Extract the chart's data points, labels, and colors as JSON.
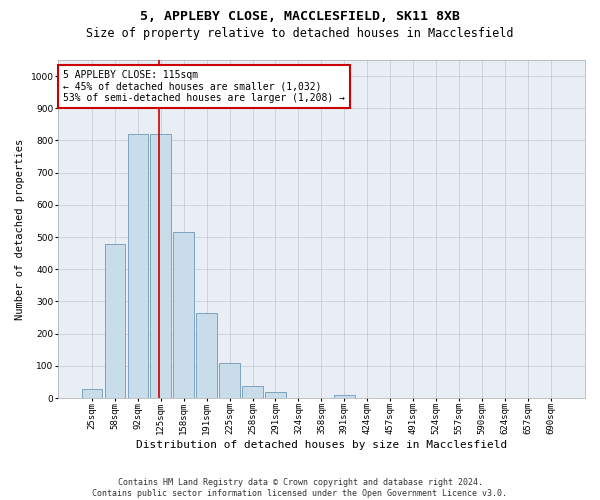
{
  "title1": "5, APPLEBY CLOSE, MACCLESFIELD, SK11 8XB",
  "title2": "Size of property relative to detached houses in Macclesfield",
  "xlabel": "Distribution of detached houses by size in Macclesfield",
  "ylabel": "Number of detached properties",
  "bar_labels": [
    "25sqm",
    "58sqm",
    "92sqm",
    "125sqm",
    "158sqm",
    "191sqm",
    "225sqm",
    "258sqm",
    "291sqm",
    "324sqm",
    "358sqm",
    "391sqm",
    "424sqm",
    "457sqm",
    "491sqm",
    "524sqm",
    "557sqm",
    "590sqm",
    "624sqm",
    "657sqm",
    "690sqm"
  ],
  "bar_values": [
    28,
    480,
    820,
    820,
    515,
    265,
    110,
    38,
    20,
    0,
    0,
    10,
    0,
    0,
    0,
    0,
    0,
    0,
    0,
    0,
    0
  ],
  "bar_color": "#c8dcea",
  "bar_edge_color": "#5a8ab0",
  "vline_color": "#cc0000",
  "annotation_text": "5 APPLEBY CLOSE: 115sqm\n← 45% of detached houses are smaller (1,032)\n53% of semi-detached houses are larger (1,208) →",
  "annotation_box_color": "#cc0000",
  "ylim": [
    0,
    1050
  ],
  "yticks": [
    0,
    100,
    200,
    300,
    400,
    500,
    600,
    700,
    800,
    900,
    1000
  ],
  "grid_color": "#c0c8d8",
  "background_color": "#e8eef4",
  "footnote": "Contains HM Land Registry data © Crown copyright and database right 2024.\nContains public sector information licensed under the Open Government Licence v3.0.",
  "title1_fontsize": 9.5,
  "title2_fontsize": 8.5,
  "xlabel_fontsize": 8,
  "ylabel_fontsize": 7.5,
  "tick_fontsize": 6.5,
  "annotation_fontsize": 7,
  "footnote_fontsize": 6
}
